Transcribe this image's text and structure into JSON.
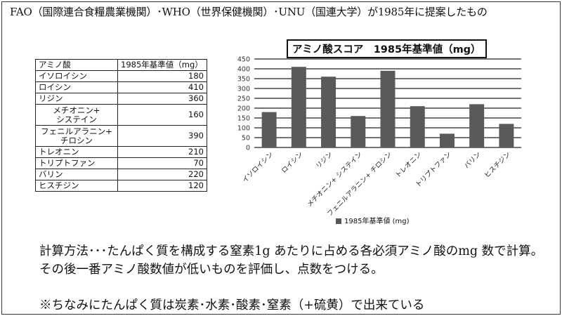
{
  "header": {
    "text": "FAO（国際連合食糧農業機関）･WHO（世界保健機関）･UNU（国連大学）が1985年に提案したもの"
  },
  "table": {
    "headers": [
      "アミノ酸",
      "1985年基準値（mg）"
    ],
    "rows": [
      {
        "name": "イソロイシン",
        "value": "180"
      },
      {
        "name": "ロイシン",
        "value": "410"
      },
      {
        "name": "リジン",
        "value": "360"
      },
      {
        "name": "メチオニン+\nシステイン",
        "value": "160"
      },
      {
        "name": "フェニルアラニン+\nチロシン",
        "value": "390"
      },
      {
        "name": "トレオニン",
        "value": "210"
      },
      {
        "name": "トリプトファン",
        "value": "70"
      },
      {
        "name": "バリン",
        "value": "220"
      },
      {
        "name": "ヒスチジン",
        "value": "120"
      }
    ]
  },
  "chart_data": {
    "type": "bar",
    "title": "アミノ酸スコア　1985年基準値（mg）",
    "categories": [
      "イソロイシン",
      "ロイシン",
      "リジン",
      "メチオニン+ システイン",
      "フェニルアラニン+ チロシン",
      "トレオニン",
      "トリプトファン",
      "バリン",
      "ヒスチジン"
    ],
    "series": [
      {
        "name": "1985年基準値 (mg)",
        "values": [
          180,
          410,
          360,
          160,
          390,
          210,
          70,
          220,
          120
        ]
      }
    ],
    "ylim": [
      0,
      450
    ],
    "yticks": [
      0,
      50,
      100,
      150,
      200,
      250,
      300,
      350,
      400,
      450
    ],
    "grid": true,
    "legend": "bottom",
    "bar_color": "#5a5a5a"
  },
  "text": {
    "method": "計算方法･･･たんぱく質を構成する窒素1g あたりに占める各必須アミノ酸のmg 数で計算。その後一番アミノ酸数値が低いものを評価し、点数をつける。",
    "note": "※ちなみにたんぱく質は炭素･水素･酸素･窒素（+硫黄）で出来ている"
  }
}
